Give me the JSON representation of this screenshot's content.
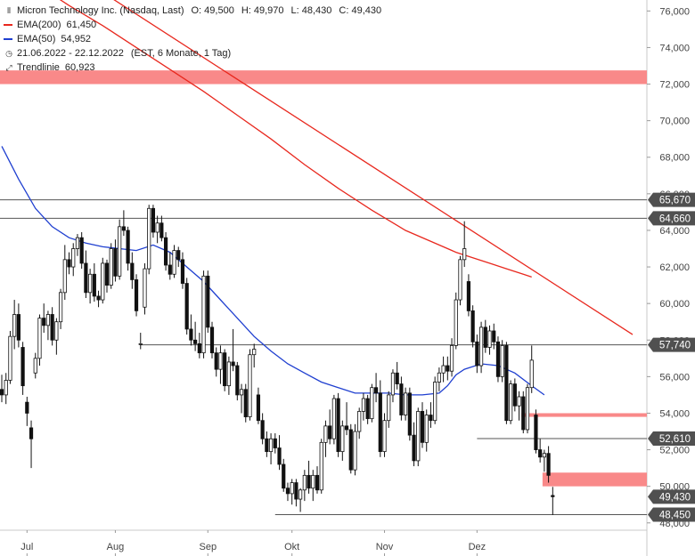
{
  "header": {
    "instrument": "Micron Technology Inc. (Nasdaq, Last)",
    "open": "O: 49,500",
    "high": "H: 49,970",
    "low": "L: 48,430",
    "close": "C: 49,430"
  },
  "legend": {
    "ema200_label": "EMA(200)",
    "ema200_value": "61,450",
    "ema50_label": "EMA(50)",
    "ema50_value": "54,952",
    "range": "21.06.2022 - 22.12.2022",
    "range_detail": "(EST, 6 Monate, 1 Tag)",
    "trend_label": "Trendlinie",
    "trend_value": "60,923"
  },
  "colors": {
    "ema200": "#e8281e",
    "ema50": "#1f3fd0",
    "zone": "#f98989",
    "trendline": "#e8281e",
    "candle": "#111111"
  },
  "chart_data": {
    "type": "candlestick",
    "ylim": [
      47.6,
      76.6
    ],
    "y_ticks": [
      48,
      50,
      52,
      54,
      56,
      58,
      60,
      62,
      64,
      66,
      68,
      70,
      72,
      74,
      76
    ],
    "y_tick_labels": [
      "48,000",
      "50,000",
      "52,000",
      "54,000",
      "56,000",
      "58,000",
      "60,000",
      "62,000",
      "64,000",
      "66,000",
      "68,000",
      "70,000",
      "72,000",
      "74,000",
      "76,000"
    ],
    "x_labels": [
      {
        "label": "Jul",
        "day": 6
      },
      {
        "label": "Aug",
        "day": 27
      },
      {
        "label": "Sep",
        "day": 49
      },
      {
        "label": "Okt",
        "day": 69
      },
      {
        "label": "Nov",
        "day": 91
      },
      {
        "label": "Dez",
        "day": 113
      }
    ],
    "n_days": 130,
    "candles": [
      {
        "o": 55.3,
        "h": 56.1,
        "l": 54.6,
        "c": 55.0
      },
      {
        "o": 55.0,
        "h": 56.2,
        "l": 54.5,
        "c": 55.8
      },
      {
        "o": 55.8,
        "h": 58.5,
        "l": 55.6,
        "c": 58.2
      },
      {
        "o": 58.2,
        "h": 60.2,
        "l": 57.5,
        "c": 59.4
      },
      {
        "o": 59.4,
        "h": 60.0,
        "l": 57.6,
        "c": 58.0
      },
      {
        "o": 57.6,
        "h": 57.9,
        "l": 55.0,
        "c": 55.5
      },
      {
        "o": 54.6,
        "h": 54.9,
        "l": 53.3,
        "c": 54.0
      },
      {
        "o": 53.2,
        "h": 53.6,
        "l": 51.0,
        "c": 52.6
      },
      {
        "o": 56.2,
        "h": 57.3,
        "l": 55.9,
        "c": 57.0
      },
      {
        "o": 57.0,
        "h": 59.4,
        "l": 56.6,
        "c": 59.2
      },
      {
        "o": 59.2,
        "h": 60.0,
        "l": 58.4,
        "c": 58.8
      },
      {
        "o": 58.8,
        "h": 59.6,
        "l": 58.0,
        "c": 59.4
      },
      {
        "o": 59.4,
        "h": 59.8,
        "l": 57.7,
        "c": 58.0
      },
      {
        "o": 58.0,
        "h": 59.2,
        "l": 57.2,
        "c": 59.0
      },
      {
        "o": 59.0,
        "h": 60.8,
        "l": 58.6,
        "c": 60.6
      },
      {
        "o": 60.6,
        "h": 63.2,
        "l": 60.2,
        "c": 62.4
      },
      {
        "o": 62.4,
        "h": 62.8,
        "l": 61.6,
        "c": 62.0
      },
      {
        "o": 62.0,
        "h": 63.3,
        "l": 61.5,
        "c": 63.0
      },
      {
        "o": 63.0,
        "h": 63.8,
        "l": 62.6,
        "c": 63.6
      },
      {
        "o": 63.6,
        "h": 63.9,
        "l": 61.9,
        "c": 62.2
      },
      {
        "o": 62.2,
        "h": 62.9,
        "l": 60.3,
        "c": 60.6
      },
      {
        "o": 60.6,
        "h": 61.9,
        "l": 60.0,
        "c": 61.6
      },
      {
        "o": 61.6,
        "h": 62.2,
        "l": 60.1,
        "c": 60.4
      },
      {
        "o": 60.4,
        "h": 60.7,
        "l": 59.8,
        "c": 60.2
      },
      {
        "o": 60.2,
        "h": 62.5,
        "l": 60.0,
        "c": 62.2
      },
      {
        "o": 62.2,
        "h": 62.4,
        "l": 60.6,
        "c": 61.0
      },
      {
        "o": 61.0,
        "h": 63.3,
        "l": 60.8,
        "c": 63.0
      },
      {
        "o": 63.0,
        "h": 63.5,
        "l": 61.2,
        "c": 61.5
      },
      {
        "o": 61.5,
        "h": 64.6,
        "l": 61.3,
        "c": 64.2
      },
      {
        "o": 64.2,
        "h": 65.1,
        "l": 63.7,
        "c": 64.0
      },
      {
        "o": 64.0,
        "h": 64.2,
        "l": 61.8,
        "c": 62.2
      },
      {
        "o": 62.2,
        "h": 62.8,
        "l": 60.8,
        "c": 61.3
      },
      {
        "o": 61.3,
        "h": 61.6,
        "l": 59.3,
        "c": 59.6
      },
      {
        "o": 57.8,
        "h": 58.4,
        "l": 57.5,
        "c": 57.8
      },
      {
        "o": 59.8,
        "h": 62.2,
        "l": 59.4,
        "c": 61.9
      },
      {
        "o": 61.9,
        "h": 65.4,
        "l": 61.6,
        "c": 65.2
      },
      {
        "o": 65.2,
        "h": 65.4,
        "l": 63.6,
        "c": 63.9
      },
      {
        "o": 63.9,
        "h": 64.8,
        "l": 63.3,
        "c": 64.4
      },
      {
        "o": 64.4,
        "h": 64.8,
        "l": 63.4,
        "c": 63.6
      },
      {
        "o": 63.6,
        "h": 63.9,
        "l": 61.8,
        "c": 62.1
      },
      {
        "o": 62.1,
        "h": 62.8,
        "l": 61.3,
        "c": 61.6
      },
      {
        "o": 61.6,
        "h": 63.2,
        "l": 61.4,
        "c": 62.9
      },
      {
        "o": 62.9,
        "h": 63.1,
        "l": 62.0,
        "c": 62.4
      },
      {
        "o": 62.4,
        "h": 62.8,
        "l": 60.8,
        "c": 61.1
      },
      {
        "o": 61.1,
        "h": 61.4,
        "l": 58.3,
        "c": 58.6
      },
      {
        "o": 58.6,
        "h": 59.4,
        "l": 57.7,
        "c": 58.0
      },
      {
        "o": 58.0,
        "h": 59.0,
        "l": 57.4,
        "c": 57.8
      },
      {
        "o": 57.8,
        "h": 58.4,
        "l": 57.0,
        "c": 57.3
      },
      {
        "o": 57.3,
        "h": 61.8,
        "l": 57.0,
        "c": 61.5
      },
      {
        "o": 61.5,
        "h": 61.8,
        "l": 58.4,
        "c": 58.7
      },
      {
        "o": 58.7,
        "h": 59.0,
        "l": 57.0,
        "c": 57.3
      },
      {
        "o": 57.3,
        "h": 57.6,
        "l": 56.0,
        "c": 56.4
      },
      {
        "o": 56.4,
        "h": 57.7,
        "l": 55.6,
        "c": 57.3
      },
      {
        "o": 57.3,
        "h": 57.5,
        "l": 55.2,
        "c": 55.5
      },
      {
        "o": 55.5,
        "h": 57.1,
        "l": 55.0,
        "c": 56.8
      },
      {
        "o": 56.8,
        "h": 58.6,
        "l": 56.3,
        "c": 56.6
      },
      {
        "o": 56.6,
        "h": 56.8,
        "l": 54.7,
        "c": 55.0
      },
      {
        "o": 55.0,
        "h": 55.6,
        "l": 54.0,
        "c": 55.3
      },
      {
        "o": 55.3,
        "h": 55.6,
        "l": 53.5,
        "c": 53.8
      },
      {
        "o": 53.8,
        "h": 57.5,
        "l": 53.6,
        "c": 57.2
      },
      {
        "o": 57.2,
        "h": 57.8,
        "l": 56.5,
        "c": 57.5
      },
      {
        "o": 55.0,
        "h": 55.4,
        "l": 53.4,
        "c": 53.6
      },
      {
        "o": 53.6,
        "h": 54.0,
        "l": 52.3,
        "c": 52.6
      },
      {
        "o": 52.6,
        "h": 53.0,
        "l": 51.6,
        "c": 51.9
      },
      {
        "o": 51.9,
        "h": 52.9,
        "l": 51.2,
        "c": 52.6
      },
      {
        "o": 52.6,
        "h": 52.9,
        "l": 51.8,
        "c": 52.1
      },
      {
        "o": 52.1,
        "h": 52.8,
        "l": 50.9,
        "c": 51.2
      },
      {
        "o": 51.2,
        "h": 51.5,
        "l": 49.7,
        "c": 49.9
      },
      {
        "o": 49.9,
        "h": 50.2,
        "l": 49.2,
        "c": 49.6
      },
      {
        "o": 49.6,
        "h": 50.4,
        "l": 49.0,
        "c": 50.2
      },
      {
        "o": 50.2,
        "h": 50.4,
        "l": 48.9,
        "c": 49.3
      },
      {
        "o": 49.3,
        "h": 49.9,
        "l": 48.6,
        "c": 49.8
      },
      {
        "o": 49.8,
        "h": 50.9,
        "l": 49.2,
        "c": 50.6
      },
      {
        "o": 50.6,
        "h": 51.4,
        "l": 49.6,
        "c": 49.9
      },
      {
        "o": 49.9,
        "h": 50.9,
        "l": 49.2,
        "c": 50.6
      },
      {
        "o": 50.6,
        "h": 51.1,
        "l": 49.6,
        "c": 49.8
      },
      {
        "o": 49.8,
        "h": 52.6,
        "l": 49.6,
        "c": 52.4
      },
      {
        "o": 52.4,
        "h": 53.6,
        "l": 51.6,
        "c": 53.3
      },
      {
        "o": 53.3,
        "h": 54.2,
        "l": 52.3,
        "c": 52.6
      },
      {
        "o": 52.6,
        "h": 55.0,
        "l": 52.3,
        "c": 54.8
      },
      {
        "o": 54.8,
        "h": 55.1,
        "l": 51.6,
        "c": 51.9
      },
      {
        "o": 51.9,
        "h": 53.6,
        "l": 51.4,
        "c": 53.3
      },
      {
        "o": 53.3,
        "h": 54.6,
        "l": 52.8,
        "c": 53.1
      },
      {
        "o": 53.1,
        "h": 53.4,
        "l": 50.7,
        "c": 50.9
      },
      {
        "o": 50.9,
        "h": 53.4,
        "l": 50.6,
        "c": 53.0
      },
      {
        "o": 53.0,
        "h": 54.3,
        "l": 52.6,
        "c": 54.1
      },
      {
        "o": 54.1,
        "h": 55.1,
        "l": 53.6,
        "c": 54.8
      },
      {
        "o": 54.8,
        "h": 55.0,
        "l": 53.4,
        "c": 53.7
      },
      {
        "o": 53.7,
        "h": 55.6,
        "l": 53.5,
        "c": 55.4
      },
      {
        "o": 55.4,
        "h": 56.2,
        "l": 54.6,
        "c": 55.1
      },
      {
        "o": 55.1,
        "h": 55.8,
        "l": 51.6,
        "c": 51.9
      },
      {
        "o": 51.9,
        "h": 54.0,
        "l": 51.6,
        "c": 53.6
      },
      {
        "o": 53.6,
        "h": 55.2,
        "l": 53.2,
        "c": 55.0
      },
      {
        "o": 55.0,
        "h": 56.4,
        "l": 54.6,
        "c": 56.2
      },
      {
        "o": 56.2,
        "h": 56.8,
        "l": 55.3,
        "c": 55.6
      },
      {
        "o": 55.6,
        "h": 56.0,
        "l": 53.6,
        "c": 53.9
      },
      {
        "o": 53.9,
        "h": 55.4,
        "l": 53.6,
        "c": 55.1
      },
      {
        "o": 55.1,
        "h": 55.4,
        "l": 52.5,
        "c": 52.8
      },
      {
        "o": 52.8,
        "h": 53.5,
        "l": 51.1,
        "c": 51.4
      },
      {
        "o": 51.4,
        "h": 54.3,
        "l": 51.1,
        "c": 54.1
      },
      {
        "o": 54.1,
        "h": 54.6,
        "l": 52.1,
        "c": 52.4
      },
      {
        "o": 52.4,
        "h": 54.2,
        "l": 51.9,
        "c": 53.9
      },
      {
        "o": 53.9,
        "h": 54.6,
        "l": 53.2,
        "c": 53.6
      },
      {
        "o": 53.6,
        "h": 56.0,
        "l": 53.4,
        "c": 55.7
      },
      {
        "o": 55.7,
        "h": 56.5,
        "l": 55.2,
        "c": 56.2
      },
      {
        "o": 56.2,
        "h": 57.1,
        "l": 55.7,
        "c": 56.6
      },
      {
        "o": 56.6,
        "h": 57.1,
        "l": 55.8,
        "c": 56.3
      },
      {
        "o": 56.3,
        "h": 58.1,
        "l": 56.0,
        "c": 57.7
      },
      {
        "o": 57.7,
        "h": 60.6,
        "l": 57.5,
        "c": 60.2
      },
      {
        "o": 60.2,
        "h": 62.6,
        "l": 59.9,
        "c": 62.4
      },
      {
        "o": 62.4,
        "h": 64.5,
        "l": 62.0,
        "c": 63.0
      },
      {
        "o": 61.2,
        "h": 61.6,
        "l": 59.3,
        "c": 59.6
      },
      {
        "o": 59.6,
        "h": 59.9,
        "l": 57.6,
        "c": 57.9
      },
      {
        "o": 57.9,
        "h": 58.3,
        "l": 56.2,
        "c": 56.6
      },
      {
        "o": 56.6,
        "h": 59.0,
        "l": 56.2,
        "c": 58.7
      },
      {
        "o": 58.7,
        "h": 59.1,
        "l": 57.3,
        "c": 57.6
      },
      {
        "o": 57.6,
        "h": 58.8,
        "l": 57.2,
        "c": 58.5
      },
      {
        "o": 58.5,
        "h": 58.9,
        "l": 57.5,
        "c": 57.9
      },
      {
        "o": 57.9,
        "h": 58.2,
        "l": 55.7,
        "c": 56.0
      },
      {
        "o": 56.0,
        "h": 58.0,
        "l": 55.7,
        "c": 57.7
      },
      {
        "o": 57.7,
        "h": 57.9,
        "l": 53.4,
        "c": 53.6
      },
      {
        "o": 53.6,
        "h": 55.8,
        "l": 53.4,
        "c": 55.6
      },
      {
        "o": 55.6,
        "h": 55.9,
        "l": 54.1,
        "c": 54.4
      },
      {
        "o": 54.4,
        "h": 55.2,
        "l": 53.6,
        "c": 54.9
      },
      {
        "o": 54.9,
        "h": 55.2,
        "l": 52.9,
        "c": 53.1
      },
      {
        "o": 53.1,
        "h": 55.6,
        "l": 52.9,
        "c": 55.4
      },
      {
        "o": 55.4,
        "h": 57.7,
        "l": 55.1,
        "c": 56.9
      },
      {
        "o": 53.9,
        "h": 54.2,
        "l": 51.8,
        "c": 52.0
      },
      {
        "o": 52.0,
        "h": 52.6,
        "l": 51.3,
        "c": 51.6
      },
      {
        "o": 51.6,
        "h": 52.0,
        "l": 50.8,
        "c": 51.8
      },
      {
        "o": 51.8,
        "h": 52.2,
        "l": 50.2,
        "c": 50.6
      },
      {
        "o": 49.5,
        "h": 49.97,
        "l": 48.43,
        "c": 49.43
      }
    ],
    "ema50": [
      [
        0,
        68.6
      ],
      [
        4,
        66.8
      ],
      [
        8,
        65.2
      ],
      [
        12,
        64.2
      ],
      [
        16,
        63.6
      ],
      [
        20,
        63.3
      ],
      [
        24,
        63.1
      ],
      [
        28,
        63.0
      ],
      [
        32,
        62.9
      ],
      [
        36,
        63.2
      ],
      [
        40,
        62.8
      ],
      [
        44,
        62.0
      ],
      [
        48,
        61.2
      ],
      [
        52,
        60.2
      ],
      [
        56,
        59.2
      ],
      [
        60,
        58.2
      ],
      [
        64,
        57.4
      ],
      [
        68,
        56.7
      ],
      [
        72,
        56.2
      ],
      [
        76,
        55.7
      ],
      [
        80,
        55.4
      ],
      [
        84,
        55.1
      ],
      [
        88,
        55.1
      ],
      [
        92,
        55.1
      ],
      [
        96,
        55.0
      ],
      [
        100,
        55.0
      ],
      [
        104,
        55.1
      ],
      [
        106,
        55.5
      ],
      [
        108,
        56.1
      ],
      [
        110,
        56.4
      ],
      [
        114,
        56.7
      ],
      [
        118,
        56.6
      ],
      [
        122,
        56.2
      ],
      [
        126,
        55.5
      ],
      [
        129,
        55.0
      ]
    ],
    "ema200": [
      [
        0,
        78.5
      ],
      [
        8,
        77.5
      ],
      [
        16,
        76.3
      ],
      [
        24,
        75.2
      ],
      [
        32,
        74.0
      ],
      [
        40,
        72.8
      ],
      [
        48,
        71.6
      ],
      [
        56,
        70.3
      ],
      [
        64,
        69.0
      ],
      [
        72,
        67.6
      ],
      [
        80,
        66.3
      ],
      [
        88,
        65.1
      ],
      [
        96,
        64.0
      ],
      [
        104,
        63.2
      ],
      [
        108,
        62.8
      ],
      [
        112,
        62.5
      ],
      [
        116,
        62.2
      ],
      [
        120,
        61.9
      ],
      [
        124,
        61.6
      ],
      [
        126,
        61.45
      ]
    ],
    "trendline": [
      [
        14,
        78.5
      ],
      [
        150,
        58.3
      ]
    ],
    "hlines": [
      {
        "y": 65.67,
        "label": "65,670",
        "from": 0
      },
      {
        "y": 64.66,
        "label": "64,660",
        "from": 0
      },
      {
        "y": 57.74,
        "label": "57,740",
        "from": 33
      },
      {
        "y": 52.61,
        "label": "52,610",
        "from": 113
      },
      {
        "y": 48.45,
        "label": "48,450",
        "from": 65
      }
    ],
    "zones": [
      {
        "y_low": 72.0,
        "y_high": 72.75,
        "from": 0
      },
      {
        "y_low": 53.8,
        "y_high": 54.0,
        "from": 124
      },
      {
        "y_low": 50.0,
        "y_high": 50.75,
        "from": 129
      }
    ],
    "last_price": {
      "y": 49.43,
      "label": "49,430"
    }
  }
}
